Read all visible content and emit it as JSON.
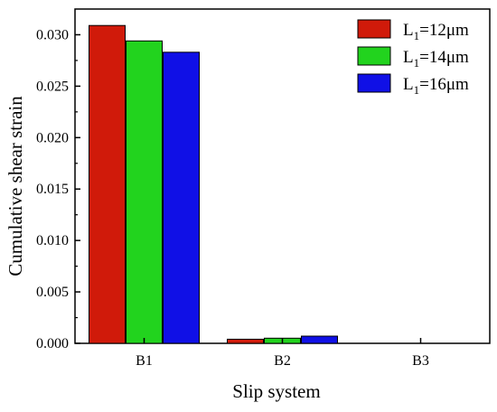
{
  "chart_data": {
    "type": "bar",
    "xlabel": "Slip system",
    "ylabel": "Cumulative shear strain",
    "categories": [
      "B1",
      "B2",
      "B3"
    ],
    "ylim": [
      0.0,
      0.0325
    ],
    "yticks": [
      "0.000",
      "0.005",
      "0.010",
      "0.015",
      "0.020",
      "0.025",
      "0.030"
    ],
    "grid": false,
    "legend_position": "top-right",
    "series": [
      {
        "name_main": "L",
        "name_sub": "1",
        "name_rest": "=12μm",
        "color": "#d01a0a",
        "values": [
          0.0309,
          0.0004,
          0.0
        ]
      },
      {
        "name_main": "L",
        "name_sub": "1",
        "name_rest": "=14μm",
        "color": "#22d31e",
        "values": [
          0.0294,
          0.0005,
          0.0
        ]
      },
      {
        "name_main": "L",
        "name_sub": "1",
        "name_rest": "=16μm",
        "color": "#1010e6",
        "values": [
          0.0283,
          0.0007,
          0.0
        ]
      }
    ]
  }
}
